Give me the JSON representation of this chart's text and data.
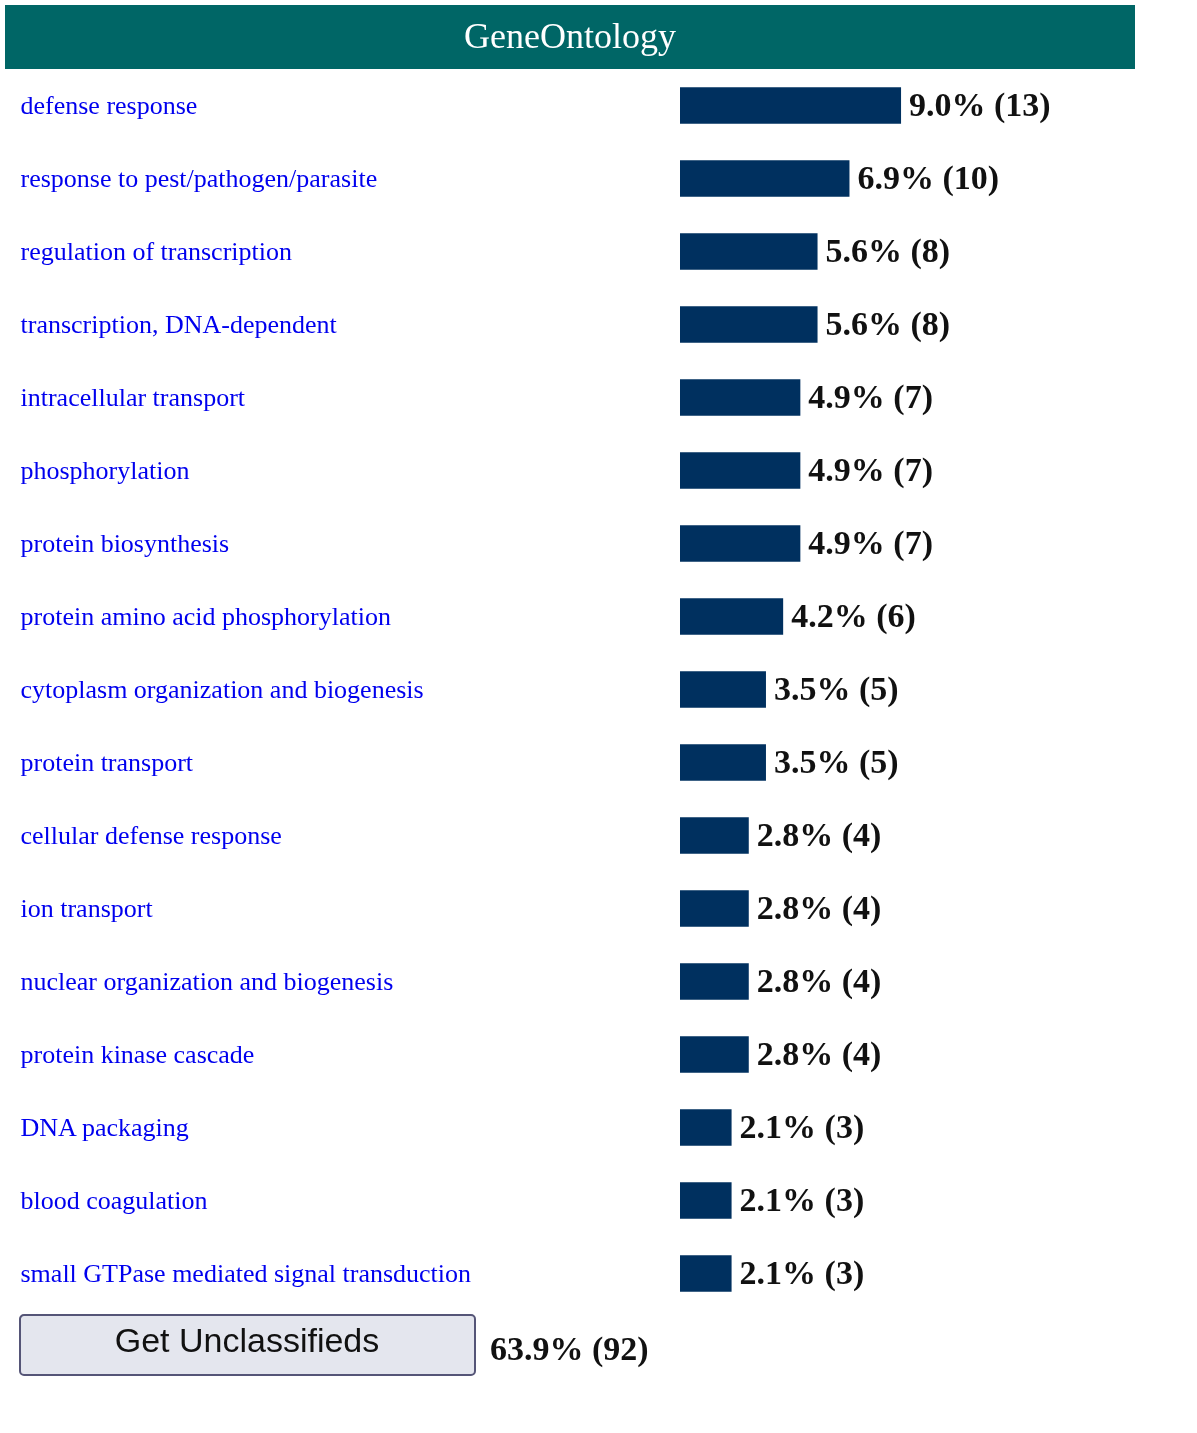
{
  "chart_data": {
    "type": "bar",
    "orientation": "horizontal",
    "title": "GeneOntology",
    "categories": [
      "defense response",
      "response to pest/pathogen/parasite",
      "regulation of transcription",
      "transcription, DNA-dependent",
      "intracellular transport",
      "phosphorylation",
      "protein biosynthesis",
      "protein amino acid phosphorylation",
      "cytoplasm organization and biogenesis",
      "protein transport",
      "cellular defense response",
      "ion transport",
      "nuclear organization and biogenesis",
      "protein kinase cascade",
      "DNA packaging",
      "blood coagulation",
      "small GTPase mediated signal transduction"
    ],
    "values": [
      9.0,
      6.9,
      5.6,
      5.6,
      4.9,
      4.9,
      4.9,
      4.2,
      3.5,
      3.5,
      2.8,
      2.8,
      2.8,
      2.8,
      2.1,
      2.1,
      2.1
    ],
    "value_labels": [
      "9.0% (13)",
      "6.9% (10)",
      "5.6% (8)",
      "5.6% (8)",
      "4.9% (7)",
      "4.9% (7)",
      "4.9% (7)",
      "4.2% (6)",
      "3.5% (5)",
      "3.5% (5)",
      "2.8% (4)",
      "2.8% (4)",
      "2.8% (4)",
      "2.8% (4)",
      "2.1% (3)",
      "2.1% (3)",
      "2.1% (3)"
    ],
    "color": "#00305f",
    "annotations": [
      "Get Unclassifieds",
      "63.9% (92)"
    ]
  }
}
